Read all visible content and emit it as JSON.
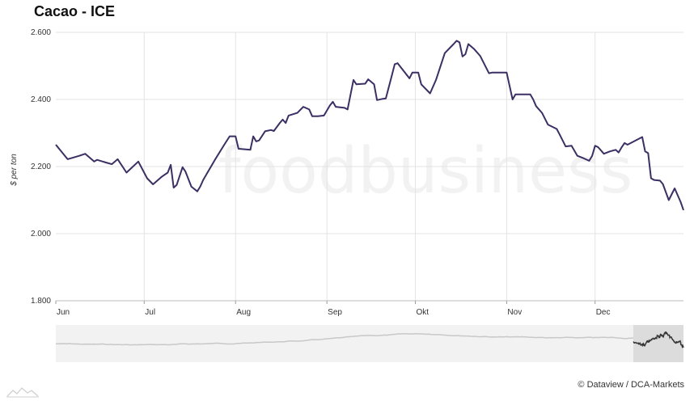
{
  "header": {
    "title": "Cacao - ICE"
  },
  "watermark": {
    "text": "foodbusiness"
  },
  "footer": {
    "credit": "© Dataview / DCA-Markets"
  },
  "colors": {
    "line": "#3b2f63",
    "grid": "#e3e3e3",
    "nav_bg": "#f2f2f2",
    "nav_line": "#cfcfcf",
    "nav_selected": "#dcdcdc"
  },
  "chart_data": {
    "type": "line",
    "title": "Cacao - ICE",
    "ylabel": "$ per ton",
    "xlabel": "",
    "ylim": [
      1800,
      2600
    ],
    "grid": true,
    "y_ticks": [
      "1.800",
      "2.000",
      "2.200",
      "2.400",
      "2.600"
    ],
    "y_tick_values": [
      1800,
      2000,
      2200,
      2400,
      2600
    ],
    "x_ticks": [
      "Jun",
      "Jul",
      "Aug",
      "Sep",
      "Okt",
      "Nov",
      "Dec"
    ],
    "x_tick_values": [
      "2016-06-01",
      "2016-07-01",
      "2016-08-01",
      "2016-09-01",
      "2016-10-01",
      "2016-11-01",
      "2016-12-01"
    ],
    "x_range": [
      "2016-06-01",
      "2016-12-31"
    ],
    "series": [
      {
        "values": [
          [
            "2016-06-01",
            2265
          ],
          [
            "2016-06-05",
            2222
          ],
          [
            "2016-06-09",
            2232
          ],
          [
            "2016-06-11",
            2238
          ],
          [
            "2016-06-14",
            2215
          ],
          [
            "2016-06-15",
            2220
          ],
          [
            "2016-06-18",
            2212
          ],
          [
            "2016-06-20",
            2207
          ],
          [
            "2016-06-22",
            2222
          ],
          [
            "2016-06-25",
            2182
          ],
          [
            "2016-06-29",
            2215
          ],
          [
            "2016-07-02",
            2165
          ],
          [
            "2016-07-04",
            2147
          ],
          [
            "2016-07-07",
            2170
          ],
          [
            "2016-07-09",
            2182
          ],
          [
            "2016-07-10",
            2205
          ],
          [
            "2016-07-11",
            2137
          ],
          [
            "2016-07-12",
            2145
          ],
          [
            "2016-07-14",
            2198
          ],
          [
            "2016-07-15",
            2185
          ],
          [
            "2016-07-17",
            2140
          ],
          [
            "2016-07-19",
            2126
          ],
          [
            "2016-07-20",
            2140
          ],
          [
            "2016-07-21",
            2160
          ],
          [
            "2016-07-25",
            2220
          ],
          [
            "2016-07-28",
            2263
          ],
          [
            "2016-07-30",
            2290
          ],
          [
            "2016-08-01",
            2290
          ],
          [
            "2016-08-02",
            2253
          ],
          [
            "2016-08-06",
            2250
          ],
          [
            "2016-08-07",
            2290
          ],
          [
            "2016-08-08",
            2275
          ],
          [
            "2016-08-09",
            2278
          ],
          [
            "2016-08-11",
            2305
          ],
          [
            "2016-08-13",
            2309
          ],
          [
            "2016-08-14",
            2306
          ],
          [
            "2016-08-16",
            2330
          ],
          [
            "2016-08-17",
            2340
          ],
          [
            "2016-08-18",
            2330
          ],
          [
            "2016-08-19",
            2352
          ],
          [
            "2016-08-22",
            2360
          ],
          [
            "2016-08-24",
            2378
          ],
          [
            "2016-08-26",
            2370
          ],
          [
            "2016-08-27",
            2350
          ],
          [
            "2016-08-29",
            2350
          ],
          [
            "2016-08-31",
            2352
          ],
          [
            "2016-09-02",
            2382
          ],
          [
            "2016-09-03",
            2393
          ],
          [
            "2016-09-04",
            2378
          ],
          [
            "2016-09-07",
            2375
          ],
          [
            "2016-09-08",
            2370
          ],
          [
            "2016-09-10",
            2458
          ],
          [
            "2016-09-11",
            2445
          ],
          [
            "2016-09-14",
            2447
          ],
          [
            "2016-09-15",
            2460
          ],
          [
            "2016-09-17",
            2445
          ],
          [
            "2016-09-18",
            2398
          ],
          [
            "2016-09-20",
            2402
          ],
          [
            "2016-09-21",
            2403
          ],
          [
            "2016-09-23",
            2470
          ],
          [
            "2016-09-24",
            2505
          ],
          [
            "2016-09-25",
            2508
          ],
          [
            "2016-09-29",
            2463
          ],
          [
            "2016-09-30",
            2480
          ],
          [
            "2016-10-02",
            2480
          ],
          [
            "2016-10-03",
            2445
          ],
          [
            "2016-10-06",
            2418
          ],
          [
            "2016-10-08",
            2458
          ],
          [
            "2016-10-11",
            2538
          ],
          [
            "2016-10-14",
            2565
          ],
          [
            "2016-10-15",
            2575
          ],
          [
            "2016-10-16",
            2570
          ],
          [
            "2016-10-17",
            2528
          ],
          [
            "2016-10-18",
            2535
          ],
          [
            "2016-10-19",
            2565
          ],
          [
            "2016-10-21",
            2550
          ],
          [
            "2016-10-23",
            2530
          ],
          [
            "2016-10-26",
            2478
          ],
          [
            "2016-10-27",
            2480
          ],
          [
            "2016-11-01",
            2480
          ],
          [
            "2016-11-03",
            2400
          ],
          [
            "2016-11-04",
            2415
          ],
          [
            "2016-11-09",
            2415
          ],
          [
            "2016-11-10",
            2400
          ],
          [
            "2016-11-11",
            2380
          ],
          [
            "2016-11-13",
            2360
          ],
          [
            "2016-11-15",
            2325
          ],
          [
            "2016-11-18",
            2312
          ],
          [
            "2016-11-19",
            2295
          ],
          [
            "2016-11-21",
            2260
          ],
          [
            "2016-11-23",
            2262
          ],
          [
            "2016-11-25",
            2232
          ],
          [
            "2016-11-27",
            2225
          ],
          [
            "2016-11-29",
            2217
          ],
          [
            "2016-11-30",
            2232
          ],
          [
            "2016-12-01",
            2262
          ],
          [
            "2016-12-02",
            2258
          ],
          [
            "2016-12-04",
            2238
          ],
          [
            "2016-12-06",
            2245
          ],
          [
            "2016-12-08",
            2250
          ],
          [
            "2016-12-09",
            2242
          ],
          [
            "2016-12-10",
            2257
          ],
          [
            "2016-12-11",
            2270
          ],
          [
            "2016-12-12",
            2265
          ],
          [
            "2016-12-17",
            2288
          ],
          [
            "2016-12-18",
            2245
          ],
          [
            "2016-12-19",
            2240
          ],
          [
            "2016-12-20",
            2165
          ],
          [
            "2016-12-21",
            2160
          ],
          [
            "2016-12-23",
            2158
          ],
          [
            "2016-12-24",
            2148
          ],
          [
            "2016-12-26",
            2100
          ],
          [
            "2016-12-28",
            2135
          ],
          [
            "2016-12-30",
            2095
          ],
          [
            "2016-12-31",
            2070
          ]
        ]
      }
    ]
  }
}
